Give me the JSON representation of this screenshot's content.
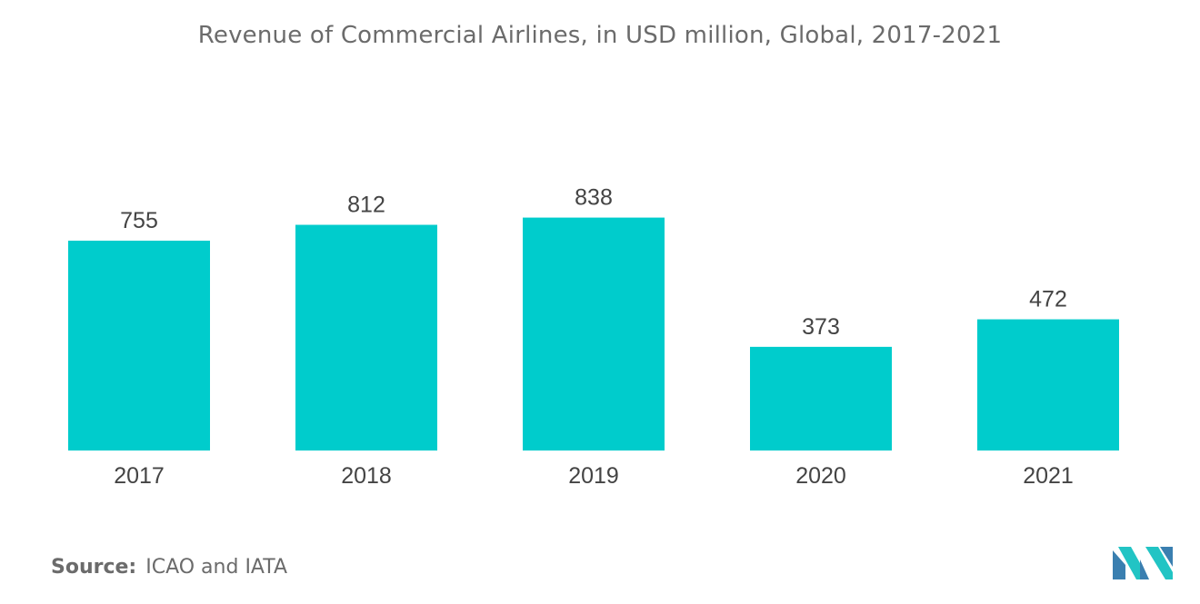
{
  "chart_data": {
    "type": "bar",
    "title": "Revenue of Commercial Airlines, in USD million, Global, 2017-2021",
    "categories": [
      "2017",
      "2018",
      "2019",
      "2020",
      "2021"
    ],
    "values": [
      755,
      812,
      838,
      373,
      472
    ],
    "xlabel": "",
    "ylabel": "",
    "ylim": [
      0,
      1000
    ],
    "grid": false,
    "bar_color": "#00cccc"
  },
  "source": {
    "label": "Source:",
    "text": "ICAO and IATA"
  },
  "logo": {
    "icon": "company-logo-icon",
    "colors": [
      "#3a7fb0",
      "#22c4c4"
    ]
  }
}
